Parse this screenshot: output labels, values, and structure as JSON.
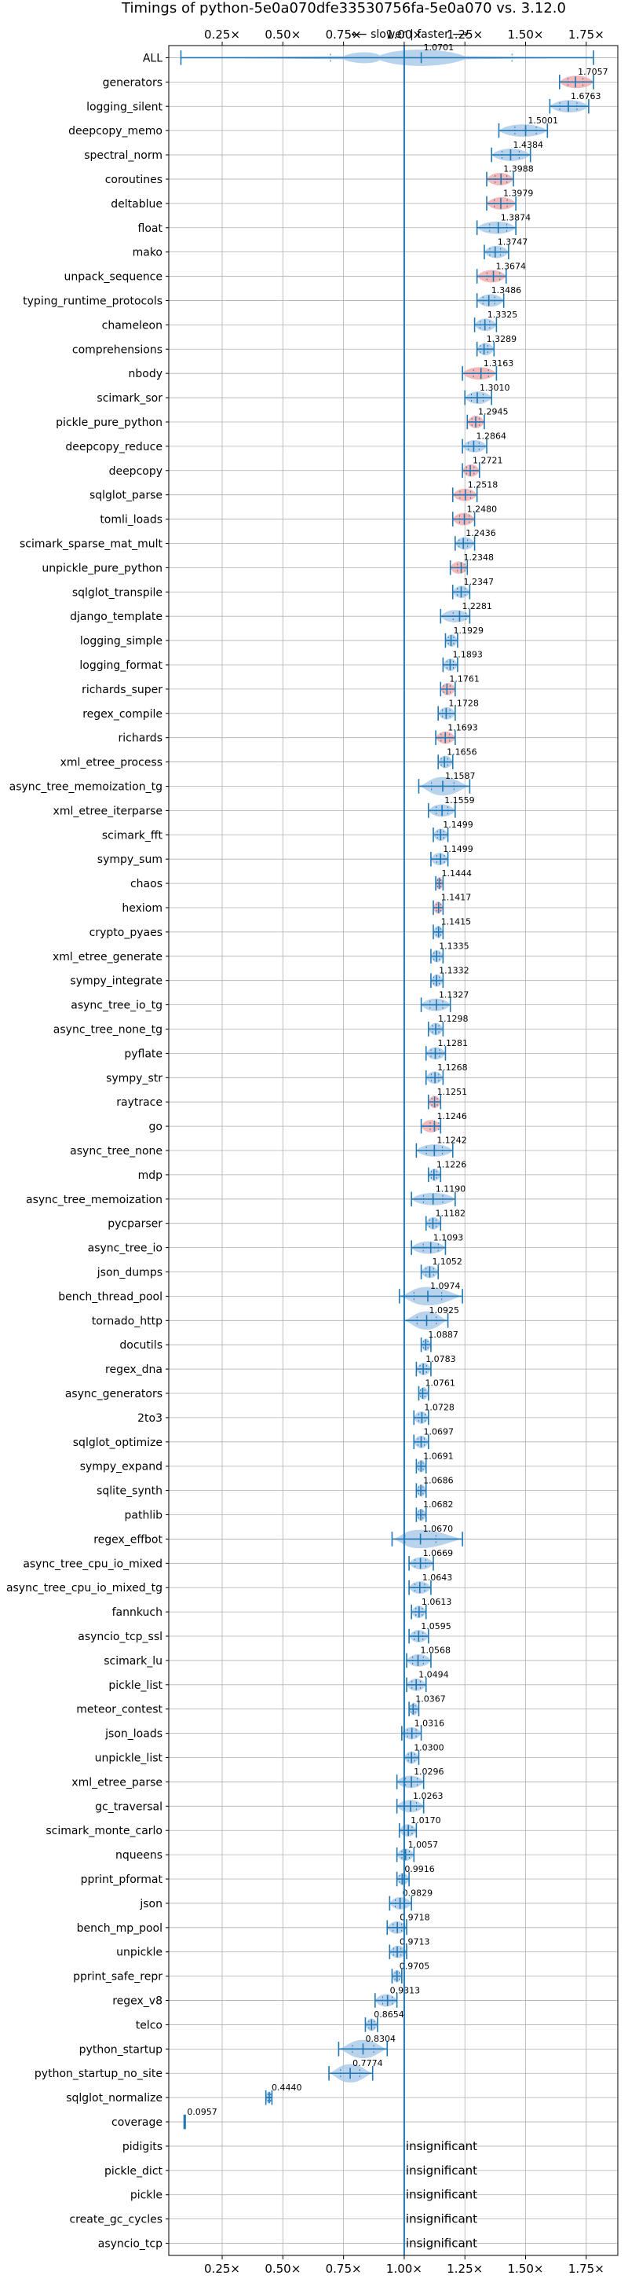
{
  "chart_data": {
    "type": "violin",
    "title": "Timings of python-5e0a070dfe33530756fa-5e0a070 vs. 3.12.0",
    "direction_label": "⟵ slower | faster ⟶",
    "xlim": [
      0.03,
      1.88
    ],
    "x_ticks": [
      0.25,
      0.5,
      0.75,
      1.0,
      1.25,
      1.5,
      1.75
    ],
    "x_tick_labels": [
      "0.25×",
      "0.50×",
      "0.75×",
      "1.00×",
      "1.25×",
      "1.50×",
      "1.75×"
    ],
    "reference_line": 1.0,
    "grid": true,
    "colors": {
      "normal": "#a8c8e8",
      "highlight": "#f4a6a6",
      "stroke": "#1f77b4",
      "grid": "#b0b0b0"
    },
    "benchmarks": [
      {
        "name": "ALL",
        "value": 1.0701,
        "label": "1.0701",
        "lo": 0.08,
        "hi": 1.78,
        "spread": "wide",
        "hl": false
      },
      {
        "name": "generators",
        "value": 1.7057,
        "label": "1.7057",
        "lo": 1.64,
        "hi": 1.78,
        "hl": true
      },
      {
        "name": "logging_silent",
        "value": 1.6763,
        "label": "1.6763",
        "lo": 1.6,
        "hi": 1.76,
        "hl": false
      },
      {
        "name": "deepcopy_memo",
        "value": 1.5001,
        "label": "1.5001",
        "lo": 1.39,
        "hi": 1.59,
        "hl": false
      },
      {
        "name": "spectral_norm",
        "value": 1.4384,
        "label": "1.4384",
        "lo": 1.36,
        "hi": 1.52,
        "hl": false
      },
      {
        "name": "coroutines",
        "value": 1.3988,
        "label": "1.3988",
        "lo": 1.34,
        "hi": 1.45,
        "hl": true
      },
      {
        "name": "deltablue",
        "value": 1.3979,
        "label": "1.3979",
        "lo": 1.34,
        "hi": 1.46,
        "hl": true
      },
      {
        "name": "float",
        "value": 1.3874,
        "label": "1.3874",
        "lo": 1.3,
        "hi": 1.46,
        "hl": false
      },
      {
        "name": "mako",
        "value": 1.3747,
        "label": "1.3747",
        "lo": 1.33,
        "hi": 1.43,
        "hl": false
      },
      {
        "name": "unpack_sequence",
        "value": 1.3674,
        "label": "1.3674",
        "lo": 1.3,
        "hi": 1.42,
        "hl": true
      },
      {
        "name": "typing_runtime_protocols",
        "value": 1.3486,
        "label": "1.3486",
        "lo": 1.3,
        "hi": 1.41,
        "hl": false
      },
      {
        "name": "chameleon",
        "value": 1.3325,
        "label": "1.3325",
        "lo": 1.29,
        "hi": 1.38,
        "hl": false
      },
      {
        "name": "comprehensions",
        "value": 1.3289,
        "label": "1.3289",
        "lo": 1.3,
        "hi": 1.37,
        "hl": false
      },
      {
        "name": "nbody",
        "value": 1.3163,
        "label": "1.3163",
        "lo": 1.24,
        "hi": 1.38,
        "hl": true
      },
      {
        "name": "scimark_sor",
        "value": 1.301,
        "label": "1.3010",
        "lo": 1.25,
        "hi": 1.36,
        "hl": false
      },
      {
        "name": "pickle_pure_python",
        "value": 1.2945,
        "label": "1.2945",
        "lo": 1.26,
        "hi": 1.33,
        "hl": true
      },
      {
        "name": "deepcopy_reduce",
        "value": 1.2864,
        "label": "1.2864",
        "lo": 1.24,
        "hi": 1.34,
        "hl": false
      },
      {
        "name": "deepcopy",
        "value": 1.2721,
        "label": "1.2721",
        "lo": 1.24,
        "hi": 1.31,
        "hl": true
      },
      {
        "name": "sqlglot_parse",
        "value": 1.2518,
        "label": "1.2518",
        "lo": 1.2,
        "hi": 1.3,
        "hl": true
      },
      {
        "name": "tomli_loads",
        "value": 1.248,
        "label": "1.2480",
        "lo": 1.2,
        "hi": 1.29,
        "hl": true
      },
      {
        "name": "scimark_sparse_mat_mult",
        "value": 1.2436,
        "label": "1.2436",
        "lo": 1.21,
        "hi": 1.29,
        "hl": false
      },
      {
        "name": "unpickle_pure_python",
        "value": 1.2348,
        "label": "1.2348",
        "lo": 1.19,
        "hi": 1.26,
        "hl": true
      },
      {
        "name": "sqlglot_transpile",
        "value": 1.2347,
        "label": "1.2347",
        "lo": 1.2,
        "hi": 1.27,
        "hl": false
      },
      {
        "name": "django_template",
        "value": 1.2281,
        "label": "1.2281",
        "lo": 1.15,
        "hi": 1.27,
        "hl": false
      },
      {
        "name": "logging_simple",
        "value": 1.1929,
        "label": "1.1929",
        "lo": 1.17,
        "hi": 1.22,
        "hl": false
      },
      {
        "name": "logging_format",
        "value": 1.1893,
        "label": "1.1893",
        "lo": 1.16,
        "hi": 1.22,
        "hl": false
      },
      {
        "name": "richards_super",
        "value": 1.1761,
        "label": "1.1761",
        "lo": 1.15,
        "hi": 1.21,
        "hl": true
      },
      {
        "name": "regex_compile",
        "value": 1.1728,
        "label": "1.1728",
        "lo": 1.14,
        "hi": 1.21,
        "hl": false
      },
      {
        "name": "richards",
        "value": 1.1693,
        "label": "1.1693",
        "lo": 1.13,
        "hi": 1.21,
        "hl": true
      },
      {
        "name": "xml_etree_process",
        "value": 1.1656,
        "label": "1.1656",
        "lo": 1.14,
        "hi": 1.2,
        "hl": false
      },
      {
        "name": "async_tree_memoization_tg",
        "value": 1.1587,
        "label": "1.1587",
        "lo": 1.06,
        "hi": 1.27,
        "spread": "wide",
        "hl": false
      },
      {
        "name": "xml_etree_iterparse",
        "value": 1.1559,
        "label": "1.1559",
        "lo": 1.1,
        "hi": 1.21,
        "hl": false
      },
      {
        "name": "scimark_fft",
        "value": 1.1499,
        "label": "1.1499",
        "lo": 1.12,
        "hi": 1.18,
        "hl": false
      },
      {
        "name": "sympy_sum",
        "value": 1.1499,
        "label": "1.1499",
        "lo": 1.11,
        "hi": 1.18,
        "hl": false
      },
      {
        "name": "chaos",
        "value": 1.1444,
        "label": "1.1444",
        "lo": 1.13,
        "hi": 1.16,
        "hl": true
      },
      {
        "name": "hexiom",
        "value": 1.1417,
        "label": "1.1417",
        "lo": 1.12,
        "hi": 1.16,
        "hl": true
      },
      {
        "name": "crypto_pyaes",
        "value": 1.1415,
        "label": "1.1415",
        "lo": 1.12,
        "hi": 1.16,
        "hl": false
      },
      {
        "name": "xml_etree_generate",
        "value": 1.1335,
        "label": "1.1335",
        "lo": 1.11,
        "hi": 1.16,
        "hl": false
      },
      {
        "name": "sympy_integrate",
        "value": 1.1332,
        "label": "1.1332",
        "lo": 1.11,
        "hi": 1.16,
        "hl": false
      },
      {
        "name": "async_tree_io_tg",
        "value": 1.1327,
        "label": "1.1327",
        "lo": 1.07,
        "hi": 1.19,
        "hl": false
      },
      {
        "name": "async_tree_none_tg",
        "value": 1.1298,
        "label": "1.1298",
        "lo": 1.1,
        "hi": 1.16,
        "hl": false
      },
      {
        "name": "pyflate",
        "value": 1.1281,
        "label": "1.1281",
        "lo": 1.09,
        "hi": 1.17,
        "hl": false
      },
      {
        "name": "sympy_str",
        "value": 1.1268,
        "label": "1.1268",
        "lo": 1.09,
        "hi": 1.16,
        "hl": false
      },
      {
        "name": "raytrace",
        "value": 1.1251,
        "label": "1.1251",
        "lo": 1.1,
        "hi": 1.15,
        "hl": true
      },
      {
        "name": "go",
        "value": 1.1246,
        "label": "1.1246",
        "lo": 1.07,
        "hi": 1.15,
        "hl": true
      },
      {
        "name": "async_tree_none",
        "value": 1.1242,
        "label": "1.1242",
        "lo": 1.05,
        "hi": 1.2,
        "hl": false
      },
      {
        "name": "mdp",
        "value": 1.1226,
        "label": "1.1226",
        "lo": 1.1,
        "hi": 1.15,
        "hl": false
      },
      {
        "name": "async_tree_memoization",
        "value": 1.119,
        "label": "1.1190",
        "lo": 1.03,
        "hi": 1.21,
        "hl": false
      },
      {
        "name": "pycparser",
        "value": 1.1182,
        "label": "1.1182",
        "lo": 1.09,
        "hi": 1.15,
        "hl": false
      },
      {
        "name": "async_tree_io",
        "value": 1.1093,
        "label": "1.1093",
        "lo": 1.03,
        "hi": 1.17,
        "hl": false
      },
      {
        "name": "json_dumps",
        "value": 1.1052,
        "label": "1.1052",
        "lo": 1.07,
        "hi": 1.14,
        "hl": false
      },
      {
        "name": "bench_thread_pool",
        "value": 1.0974,
        "label": "1.0974",
        "lo": 0.98,
        "hi": 1.24,
        "spread": "wide",
        "hl": false
      },
      {
        "name": "tornado_http",
        "value": 1.0925,
        "label": "1.0925",
        "lo": 1.0,
        "hi": 1.18,
        "spread": "wide",
        "hl": false
      },
      {
        "name": "docutils",
        "value": 1.0887,
        "label": "1.0887",
        "lo": 1.07,
        "hi": 1.11,
        "hl": false
      },
      {
        "name": "regex_dna",
        "value": 1.0783,
        "label": "1.0783",
        "lo": 1.05,
        "hi": 1.11,
        "hl": false
      },
      {
        "name": "async_generators",
        "value": 1.0761,
        "label": "1.0761",
        "lo": 1.06,
        "hi": 1.1,
        "hl": false
      },
      {
        "name": "2to3",
        "value": 1.0728,
        "label": "1.0728",
        "lo": 1.04,
        "hi": 1.1,
        "hl": false
      },
      {
        "name": "sqlglot_optimize",
        "value": 1.0697,
        "label": "1.0697",
        "lo": 1.04,
        "hi": 1.1,
        "hl": false
      },
      {
        "name": "sympy_expand",
        "value": 1.0691,
        "label": "1.0691",
        "lo": 1.05,
        "hi": 1.09,
        "hl": false
      },
      {
        "name": "sqlite_synth",
        "value": 1.0686,
        "label": "1.0686",
        "lo": 1.05,
        "hi": 1.09,
        "hl": false
      },
      {
        "name": "pathlib",
        "value": 1.0682,
        "label": "1.0682",
        "lo": 1.05,
        "hi": 1.09,
        "hl": false
      },
      {
        "name": "regex_effbot",
        "value": 1.067,
        "label": "1.0670",
        "lo": 0.95,
        "hi": 1.24,
        "spread": "wide",
        "hl": false
      },
      {
        "name": "async_tree_cpu_io_mixed",
        "value": 1.0669,
        "label": "1.0669",
        "lo": 1.02,
        "hi": 1.12,
        "hl": false
      },
      {
        "name": "async_tree_cpu_io_mixed_tg",
        "value": 1.0643,
        "label": "1.0643",
        "lo": 1.02,
        "hi": 1.11,
        "hl": false
      },
      {
        "name": "fannkuch",
        "value": 1.0613,
        "label": "1.0613",
        "lo": 1.03,
        "hi": 1.09,
        "hl": false
      },
      {
        "name": "asyncio_tcp_ssl",
        "value": 1.0595,
        "label": "1.0595",
        "lo": 1.02,
        "hi": 1.1,
        "hl": false
      },
      {
        "name": "scimark_lu",
        "value": 1.0568,
        "label": "1.0568",
        "lo": 1.01,
        "hi": 1.11,
        "hl": false
      },
      {
        "name": "pickle_list",
        "value": 1.0494,
        "label": "1.0494",
        "lo": 1.01,
        "hi": 1.09,
        "hl": false
      },
      {
        "name": "meteor_contest",
        "value": 1.0367,
        "label": "1.0367",
        "lo": 1.02,
        "hi": 1.06,
        "hl": false
      },
      {
        "name": "json_loads",
        "value": 1.0316,
        "label": "1.0316",
        "lo": 0.99,
        "hi": 1.07,
        "hl": false
      },
      {
        "name": "unpickle_list",
        "value": 1.03,
        "label": "1.0300",
        "lo": 1.0,
        "hi": 1.06,
        "hl": false
      },
      {
        "name": "xml_etree_parse",
        "value": 1.0296,
        "label": "1.0296",
        "lo": 0.97,
        "hi": 1.08,
        "hl": false
      },
      {
        "name": "gc_traversal",
        "value": 1.0263,
        "label": "1.0263",
        "lo": 0.97,
        "hi": 1.08,
        "hl": false
      },
      {
        "name": "scimark_monte_carlo",
        "value": 1.017,
        "label": "1.0170",
        "lo": 0.98,
        "hi": 1.05,
        "hl": false
      },
      {
        "name": "nqueens",
        "value": 1.0057,
        "label": "1.0057",
        "lo": 0.97,
        "hi": 1.04,
        "hl": false
      },
      {
        "name": "pprint_pformat",
        "value": 0.9916,
        "label": "0.9916",
        "lo": 0.97,
        "hi": 1.02,
        "hl": false
      },
      {
        "name": "json",
        "value": 0.9829,
        "label": "0.9829",
        "lo": 0.94,
        "hi": 1.03,
        "hl": false
      },
      {
        "name": "bench_mp_pool",
        "value": 0.9718,
        "label": "0.9718",
        "lo": 0.93,
        "hi": 1.01,
        "hl": false
      },
      {
        "name": "unpickle",
        "value": 0.9713,
        "label": "0.9713",
        "lo": 0.94,
        "hi": 1.01,
        "hl": false
      },
      {
        "name": "pprint_safe_repr",
        "value": 0.9705,
        "label": "0.9705",
        "lo": 0.95,
        "hi": 0.99,
        "hl": false
      },
      {
        "name": "regex_v8",
        "value": 0.9313,
        "label": "0.9313",
        "lo": 0.88,
        "hi": 0.97,
        "hl": false
      },
      {
        "name": "telco",
        "value": 0.8654,
        "label": "0.8654",
        "lo": 0.84,
        "hi": 0.89,
        "hl": false
      },
      {
        "name": "python_startup",
        "value": 0.8304,
        "label": "0.8304",
        "lo": 0.73,
        "hi": 0.93,
        "spread": "wide",
        "hl": false
      },
      {
        "name": "python_startup_no_site",
        "value": 0.7774,
        "label": "0.7774",
        "lo": 0.69,
        "hi": 0.87,
        "spread": "wide",
        "hl": false
      },
      {
        "name": "sqlglot_normalize",
        "value": 0.444,
        "label": "0.4440",
        "lo": 0.43,
        "hi": 0.455,
        "hl": false
      },
      {
        "name": "coverage",
        "value": 0.0957,
        "label": "0.0957",
        "lo": 0.093,
        "hi": 0.098,
        "hl": false
      },
      {
        "name": "pidigits",
        "insignificant": true,
        "note": "insignificant"
      },
      {
        "name": "pickle_dict",
        "insignificant": true,
        "note": "insignificant"
      },
      {
        "name": "pickle",
        "insignificant": true,
        "note": "insignificant"
      },
      {
        "name": "create_gc_cycles",
        "insignificant": true,
        "note": "insignificant"
      },
      {
        "name": "asyncio_tcp",
        "insignificant": true,
        "note": "insignificant"
      }
    ]
  }
}
